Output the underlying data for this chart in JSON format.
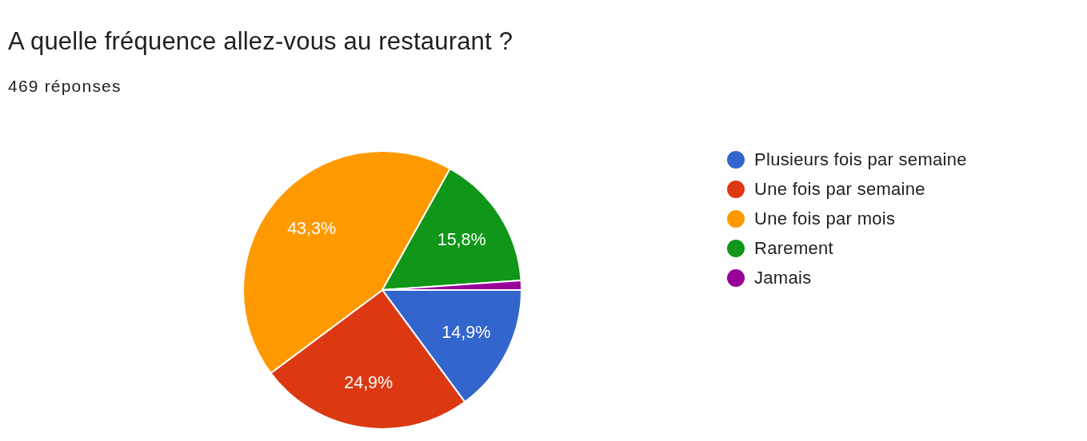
{
  "chart_data": {
    "type": "pie",
    "title": "A quelle fréquence allez-vous au restaurant ?",
    "subtitle": "469 réponses",
    "categories": [
      "Plusieurs fois par semaine",
      "Une fois par semaine",
      "Une fois par mois",
      "Rarement",
      "Jamais"
    ],
    "values": [
      14.9,
      24.9,
      43.3,
      15.8,
      1.1
    ],
    "colors": [
      "#3366cc",
      "#dc3912",
      "#ff9900",
      "#109618",
      "#990099"
    ],
    "value_labels": [
      "14,9%",
      "24,9%",
      "43,3%",
      "15,8%",
      null
    ],
    "legend": "right"
  }
}
